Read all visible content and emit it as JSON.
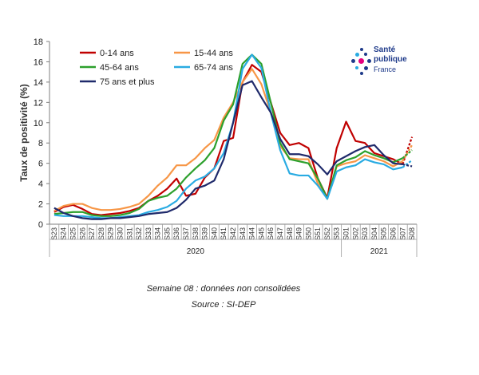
{
  "chart_data": {
    "type": "line",
    "ylabel": "Taux de positivité (%)",
    "ylim": [
      0,
      18
    ],
    "yticks": [
      0,
      2,
      4,
      6,
      8,
      10,
      12,
      14,
      16,
      18
    ],
    "grid": false,
    "legend_position": "top-left",
    "categories": [
      "S23",
      "S24",
      "S25",
      "S26",
      "S27",
      "S28",
      "S29",
      "S30",
      "S31",
      "S32",
      "S33",
      "S34",
      "S35",
      "S36",
      "S37",
      "S38",
      "S39",
      "S40",
      "S41",
      "S42",
      "S43",
      "S44",
      "S45",
      "S46",
      "S47",
      "S48",
      "S49",
      "S50",
      "S51",
      "S52",
      "S53",
      "S01",
      "S02",
      "S03",
      "S04",
      "S05",
      "S06",
      "S07",
      "S08"
    ],
    "year_groups": [
      {
        "label": "2020",
        "start": 0,
        "end": 30
      },
      {
        "label": "2021",
        "start": 31,
        "end": 38
      }
    ],
    "dashed_last_segment": true,
    "series": [
      {
        "name": "0-14 ans",
        "color": "#c00000",
        "values": [
          1.2,
          1.7,
          1.9,
          1.5,
          1.0,
          0.9,
          1.0,
          1.1,
          1.3,
          1.6,
          2.3,
          2.8,
          3.5,
          4.5,
          2.8,
          3.0,
          4.6,
          5.5,
          8.2,
          8.5,
          14.0,
          15.7,
          15.0,
          12.0,
          9.0,
          7.8,
          8.0,
          7.5,
          4.5,
          2.6,
          7.5,
          10.1,
          8.2,
          8.0,
          7.0,
          6.7,
          6.4,
          5.9,
          8.6
        ]
      },
      {
        "name": "15-44 ans",
        "color": "#f79646",
        "values": [
          1.3,
          1.8,
          2.0,
          2.0,
          1.6,
          1.4,
          1.4,
          1.5,
          1.7,
          2.0,
          2.8,
          3.8,
          4.6,
          5.8,
          5.8,
          6.5,
          7.5,
          8.3,
          10.5,
          12.0,
          14.0,
          15.3,
          13.8,
          11.0,
          7.7,
          6.5,
          6.4,
          6.4,
          4.0,
          2.5,
          5.7,
          6.0,
          6.2,
          6.8,
          6.5,
          6.2,
          5.7,
          6.2,
          7.8
        ]
      },
      {
        "name": "45-64 ans",
        "color": "#2ca02c",
        "values": [
          1.0,
          1.1,
          1.2,
          1.2,
          0.9,
          0.8,
          0.8,
          0.9,
          1.1,
          1.5,
          2.3,
          2.6,
          2.8,
          3.5,
          4.6,
          5.5,
          6.3,
          7.5,
          10.2,
          11.8,
          15.8,
          16.7,
          15.8,
          12.0,
          8.0,
          6.4,
          6.2,
          6.0,
          4.5,
          2.5,
          5.8,
          6.3,
          6.6,
          7.2,
          6.8,
          6.5,
          6.1,
          6.5,
          7.3
        ]
      },
      {
        "name": "65-74 ans",
        "color": "#29abe2",
        "values": [
          0.9,
          0.8,
          0.8,
          0.8,
          0.7,
          0.6,
          0.6,
          0.7,
          0.8,
          0.9,
          1.2,
          1.4,
          1.7,
          2.3,
          3.5,
          4.3,
          4.7,
          5.5,
          7.0,
          10.0,
          15.3,
          16.7,
          15.4,
          11.0,
          7.3,
          5.0,
          4.8,
          4.8,
          3.8,
          2.5,
          5.2,
          5.6,
          5.8,
          6.4,
          6.1,
          5.9,
          5.4,
          5.6,
          6.3
        ]
      },
      {
        "name": "75 ans et plus",
        "color": "#1f2a6b",
        "values": [
          1.6,
          1.1,
          0.8,
          0.6,
          0.5,
          0.5,
          0.6,
          0.6,
          0.7,
          0.8,
          1.0,
          1.1,
          1.2,
          1.6,
          2.4,
          3.5,
          3.8,
          4.3,
          6.4,
          10.0,
          13.7,
          14.1,
          12.5,
          11.0,
          8.4,
          6.9,
          6.9,
          6.7,
          5.9,
          4.9,
          6.2,
          6.7,
          7.2,
          7.6,
          7.8,
          6.8,
          6.0,
          5.9,
          5.7
        ]
      }
    ]
  },
  "captions": {
    "line1": "Semaine 08 : données non consolidées",
    "line2": "Source : SI-DEP"
  },
  "logo": {
    "line1": "Santé",
    "line2": "publique",
    "line3": "France",
    "dot_colors": [
      "#1e3a8a",
      "#e6007e",
      "#29abe2"
    ]
  }
}
